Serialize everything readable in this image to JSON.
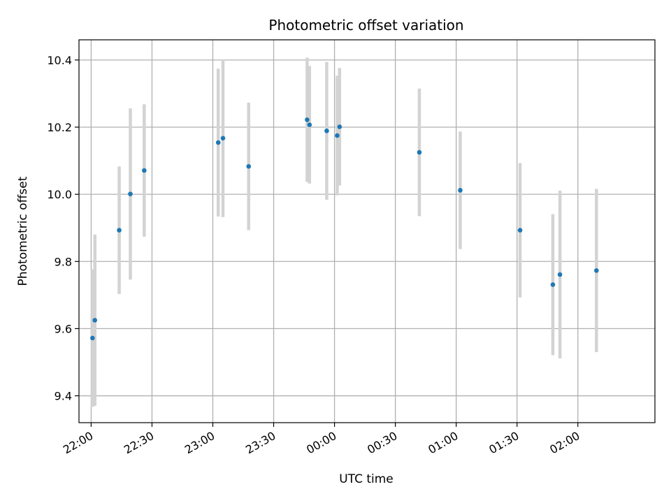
{
  "chart_data": {
    "type": "scatter",
    "title": "Photometric offset variation",
    "xlabel": "UTC time",
    "ylabel": "Photometric offset",
    "xlim": [
      "21:54",
      "02:38"
    ],
    "ylim": [
      9.32,
      10.46
    ],
    "x_ticks": [
      "22:00",
      "22:30",
      "23:00",
      "23:30",
      "00:00",
      "00:30",
      "01:00",
      "01:30",
      "02:00"
    ],
    "y_ticks": [
      9.4,
      9.6,
      9.8,
      10.0,
      10.2,
      10.4
    ],
    "grid": true,
    "marker_color": "#1f77b4",
    "errorbar_color": "#d3d3d3",
    "points": [
      {
        "t": "22:00:40",
        "y": 9.572,
        "err": 0.205
      },
      {
        "t": "22:01:50",
        "y": 9.625,
        "err": 0.255
      },
      {
        "t": "22:13:50",
        "y": 9.893,
        "err": 0.19
      },
      {
        "t": "22:19:20",
        "y": 10.001,
        "err": 0.255
      },
      {
        "t": "22:26:10",
        "y": 10.071,
        "err": 0.197
      },
      {
        "t": "23:02:40",
        "y": 10.154,
        "err": 0.22
      },
      {
        "t": "23:05:00",
        "y": 10.167,
        "err": 0.235
      },
      {
        "t": "23:17:40",
        "y": 10.083,
        "err": 0.19
      },
      {
        "t": "23:46:30",
        "y": 10.222,
        "err": 0.185
      },
      {
        "t": "23:47:40",
        "y": 10.207,
        "err": 0.175
      },
      {
        "t": "23:56:10",
        "y": 10.189,
        "err": 0.205
      },
      {
        "t": "00:01:20",
        "y": 10.175,
        "err": 0.178
      },
      {
        "t": "00:02:30",
        "y": 10.201,
        "err": 0.175
      },
      {
        "t": "00:41:50",
        "y": 10.125,
        "err": 0.19
      },
      {
        "t": "01:02:00",
        "y": 10.012,
        "err": 0.175
      },
      {
        "t": "01:31:30",
        "y": 9.893,
        "err": 0.2
      },
      {
        "t": "01:47:40",
        "y": 9.731,
        "err": 0.21
      },
      {
        "t": "01:51:10",
        "y": 9.761,
        "err": 0.25
      },
      {
        "t": "02:09:10",
        "y": 9.773,
        "err": 0.243
      }
    ]
  }
}
